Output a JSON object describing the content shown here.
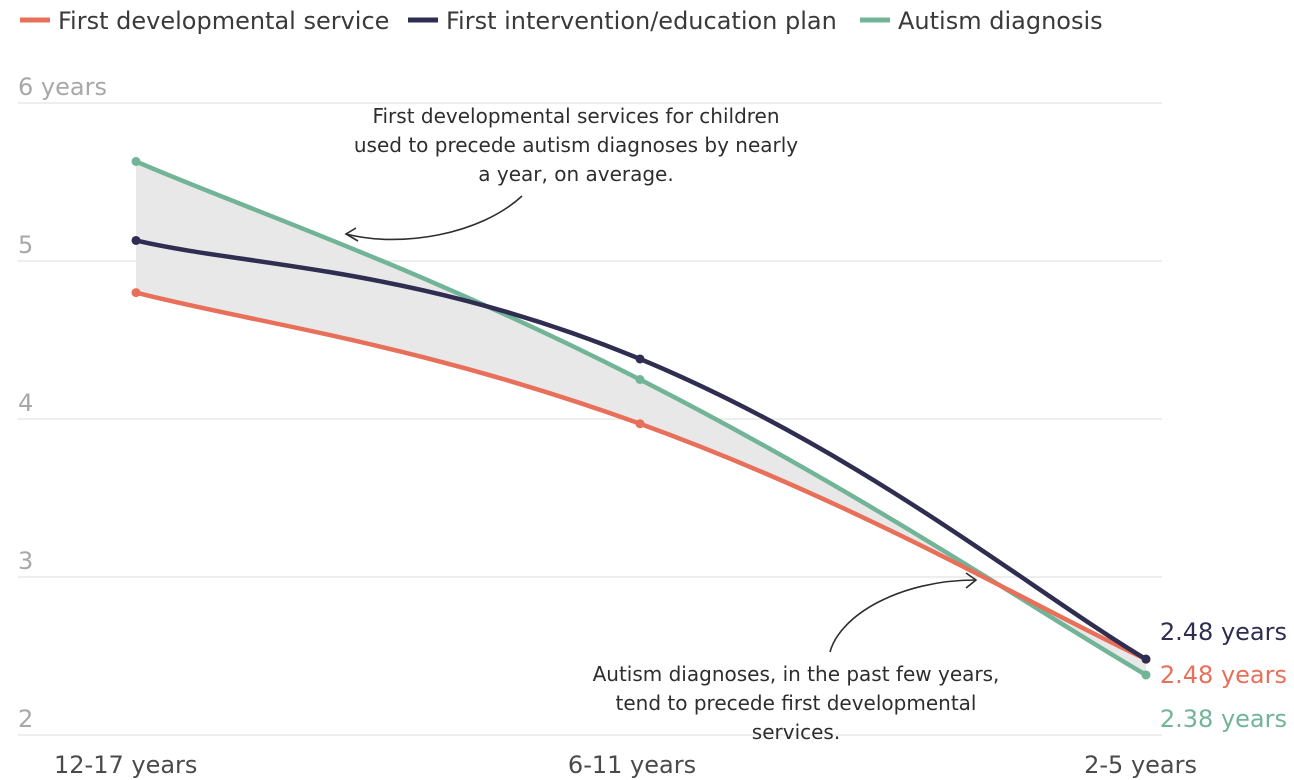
{
  "chart_data": {
    "type": "line",
    "categories": [
      "12-17 years",
      "6-11 years",
      "2-5 years"
    ],
    "y_ticks": [
      "6 years",
      "5",
      "4",
      "3",
      "2"
    ],
    "y_tick_values": [
      6,
      5,
      4,
      3,
      2
    ],
    "ylim": [
      2,
      6
    ],
    "grid": true,
    "legend_position": "top-left",
    "series": [
      {
        "name": "First developmental service",
        "color": "#e8705a",
        "values": [
          4.8,
          3.97,
          2.48
        ]
      },
      {
        "name": "First intervention/education plan",
        "color": "#2f2d50",
        "values": [
          5.13,
          4.38,
          2.48
        ]
      },
      {
        "name": "Autism diagnosis",
        "color": "#72b497",
        "values": [
          5.63,
          4.25,
          2.38
        ]
      }
    ],
    "end_labels": [
      "2.48 years",
      "2.48 years",
      "2.38 years"
    ],
    "annotations": [
      {
        "lines": [
          "First developmental services for children",
          "used to precede autism diagnoses by nearly",
          "a year, on average."
        ]
      },
      {
        "lines": [
          "Autism diagnoses, in the past few years,",
          "tend to precede first developmental",
          "services."
        ]
      }
    ]
  }
}
